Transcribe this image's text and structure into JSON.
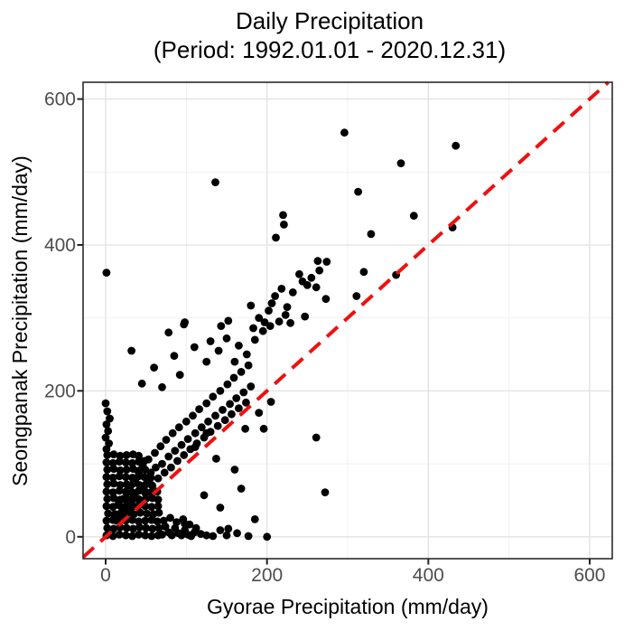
{
  "chart_data": {
    "type": "scatter",
    "title": "Daily Precipitation",
    "subtitle": "(Period: 1992.01.01 - 2020.12.31)",
    "xlabel": "Gyorae Precipitation (mm/day)",
    "ylabel": "Seongpanak Precipitation (mm/day)",
    "xlim": [
      -28,
      628
    ],
    "ylim": [
      -30,
      623
    ],
    "x_ticks": [
      0,
      200,
      400,
      600
    ],
    "y_ticks": [
      0,
      200,
      400,
      600
    ],
    "x_minor_ticks": [
      100,
      300,
      500
    ],
    "y_minor_ticks": [
      100,
      300,
      500
    ],
    "grid": true,
    "legend_position": "none",
    "panel_background": "#ffffff",
    "panel_border_color": "#2b2b2b",
    "major_grid_color": "#e2e2e2",
    "minor_grid_color": "#efefef",
    "tick_color": "#222222",
    "point_color": "#000000",
    "point_radius": 4.4,
    "identity_line": {
      "equation": "y = x",
      "style": "dashed",
      "color": "#ee1111",
      "stroke_width": 4,
      "dash": [
        16,
        10
      ]
    },
    "points": [
      [
        1,
        2
      ],
      [
        9,
        1
      ],
      [
        17,
        3
      ],
      [
        25,
        2
      ],
      [
        33,
        1
      ],
      [
        41,
        3
      ],
      [
        49,
        2
      ],
      [
        57,
        1
      ],
      [
        65,
        2
      ],
      [
        2,
        12
      ],
      [
        10,
        11
      ],
      [
        18,
        13
      ],
      [
        26,
        12
      ],
      [
        34,
        11
      ],
      [
        42,
        13
      ],
      [
        50,
        12
      ],
      [
        58,
        11
      ],
      [
        66,
        12
      ],
      [
        1,
        22
      ],
      [
        9,
        23
      ],
      [
        17,
        21
      ],
      [
        25,
        22
      ],
      [
        33,
        23
      ],
      [
        41,
        21
      ],
      [
        49,
        22
      ],
      [
        57,
        23
      ],
      [
        64,
        21
      ],
      [
        3,
        32
      ],
      [
        11,
        31
      ],
      [
        19,
        33
      ],
      [
        27,
        32
      ],
      [
        35,
        31
      ],
      [
        43,
        33
      ],
      [
        51,
        32
      ],
      [
        59,
        31
      ],
      [
        66,
        33
      ],
      [
        1,
        42
      ],
      [
        9,
        41
      ],
      [
        17,
        43
      ],
      [
        25,
        42
      ],
      [
        33,
        41
      ],
      [
        41,
        43
      ],
      [
        49,
        42
      ],
      [
        57,
        41
      ],
      [
        65,
        42
      ],
      [
        2,
        52
      ],
      [
        10,
        53
      ],
      [
        18,
        51
      ],
      [
        26,
        52
      ],
      [
        34,
        53
      ],
      [
        42,
        51
      ],
      [
        50,
        52
      ],
      [
        58,
        53
      ],
      [
        65,
        51
      ],
      [
        1,
        62
      ],
      [
        9,
        61
      ],
      [
        17,
        63
      ],
      [
        25,
        62
      ],
      [
        33,
        61
      ],
      [
        41,
        63
      ],
      [
        49,
        62
      ],
      [
        56,
        61
      ],
      [
        64,
        62
      ],
      [
        2,
        72
      ],
      [
        10,
        73
      ],
      [
        18,
        71
      ],
      [
        26,
        72
      ],
      [
        34,
        73
      ],
      [
        42,
        71
      ],
      [
        50,
        72
      ],
      [
        57,
        71
      ],
      [
        1,
        82
      ],
      [
        9,
        81
      ],
      [
        17,
        83
      ],
      [
        25,
        82
      ],
      [
        33,
        81
      ],
      [
        41,
        83
      ],
      [
        48,
        82
      ],
      [
        56,
        81
      ],
      [
        2,
        92
      ],
      [
        10,
        93
      ],
      [
        18,
        91
      ],
      [
        26,
        92
      ],
      [
        34,
        93
      ],
      [
        42,
        91
      ],
      [
        49,
        92
      ],
      [
        1,
        102
      ],
      [
        9,
        101
      ],
      [
        17,
        103
      ],
      [
        25,
        102
      ],
      [
        33,
        101
      ],
      [
        41,
        103
      ],
      [
        48,
        104
      ],
      [
        2,
        112
      ],
      [
        10,
        113
      ],
      [
        18,
        111
      ],
      [
        26,
        112
      ],
      [
        34,
        113
      ],
      [
        41,
        111
      ],
      [
        70,
        3
      ],
      [
        74,
        14
      ],
      [
        78,
        6
      ],
      [
        82,
        2
      ],
      [
        86,
        12
      ],
      [
        90,
        5
      ],
      [
        94,
        2
      ],
      [
        98,
        9
      ],
      [
        102,
        3
      ],
      [
        106,
        1
      ],
      [
        110,
        6
      ],
      [
        72,
        22
      ],
      [
        80,
        26
      ],
      [
        88,
        20
      ],
      [
        96,
        24
      ],
      [
        104,
        17
      ],
      [
        112,
        12
      ],
      [
        118,
        4
      ],
      [
        125,
        2
      ],
      [
        133,
        1
      ],
      [
        142,
        9
      ],
      [
        150,
        2
      ],
      [
        163,
        5
      ],
      [
        177,
        1
      ],
      [
        200,
        0
      ],
      [
        1,
        120
      ],
      [
        4,
        128
      ],
      [
        0,
        136
      ],
      [
        3,
        145
      ],
      [
        1,
        154
      ],
      [
        5,
        162
      ],
      [
        2,
        172
      ],
      [
        0,
        183
      ],
      [
        12,
        31
      ],
      [
        14,
        22
      ],
      [
        16,
        45
      ],
      [
        19,
        27
      ],
      [
        22,
        52
      ],
      [
        23,
        38
      ],
      [
        26,
        60
      ],
      [
        28,
        35
      ],
      [
        31,
        70
      ],
      [
        32,
        47
      ],
      [
        35,
        58
      ],
      [
        37,
        79
      ],
      [
        40,
        52
      ],
      [
        41,
        88
      ],
      [
        44,
        66
      ],
      [
        46,
        98
      ],
      [
        49,
        60
      ],
      [
        52,
        75
      ],
      [
        53,
        106
      ],
      [
        56,
        88
      ],
      [
        58,
        70
      ],
      [
        61,
        115
      ],
      [
        62,
        95
      ],
      [
        65,
        80
      ],
      [
        68,
        124
      ],
      [
        70,
        100
      ],
      [
        73,
        88
      ],
      [
        75,
        133
      ],
      [
        78,
        110
      ],
      [
        81,
        95
      ],
      [
        83,
        142
      ],
      [
        86,
        118
      ],
      [
        89,
        104
      ],
      [
        91,
        150
      ],
      [
        94,
        126
      ],
      [
        97,
        112
      ],
      [
        100,
        158
      ],
      [
        102,
        134
      ],
      [
        105,
        120
      ],
      [
        108,
        166
      ],
      [
        111,
        142
      ],
      [
        113,
        128
      ],
      [
        116,
        175
      ],
      [
        119,
        150
      ],
      [
        122,
        136
      ],
      [
        125,
        183
      ],
      [
        127,
        158
      ],
      [
        130,
        144
      ],
      [
        133,
        192
      ],
      [
        136,
        166
      ],
      [
        139,
        152
      ],
      [
        142,
        200
      ],
      [
        145,
        174
      ],
      [
        148,
        160
      ],
      [
        151,
        209
      ],
      [
        154,
        182
      ],
      [
        156,
        168
      ],
      [
        159,
        218
      ],
      [
        162,
        190
      ],
      [
        165,
        176
      ],
      [
        168,
        226
      ],
      [
        171,
        198
      ],
      [
        174,
        184
      ],
      [
        177,
        235
      ],
      [
        180,
        206
      ],
      [
        45,
        210
      ],
      [
        60,
        232
      ],
      [
        70,
        205
      ],
      [
        85,
        248
      ],
      [
        92,
        222
      ],
      [
        110,
        260
      ],
      [
        125,
        240
      ],
      [
        130,
        268
      ],
      [
        140,
        255
      ],
      [
        150,
        272
      ],
      [
        160,
        240
      ],
      [
        165,
        262
      ],
      [
        175,
        250
      ],
      [
        185,
        270
      ],
      [
        190,
        300
      ],
      [
        195,
        282
      ],
      [
        210,
        330
      ],
      [
        215,
        295
      ],
      [
        218,
        340
      ],
      [
        225,
        315
      ],
      [
        232,
        335
      ],
      [
        240,
        360
      ],
      [
        250,
        345
      ],
      [
        32,
        255
      ],
      [
        78,
        280
      ],
      [
        97,
        291
      ],
      [
        143,
        289
      ],
      [
        183,
        286
      ],
      [
        204,
        289
      ],
      [
        98,
        294
      ],
      [
        152,
        296
      ],
      [
        197,
        294
      ],
      [
        229,
        293
      ],
      [
        223,
        304
      ],
      [
        202,
        310
      ],
      [
        206,
        320
      ],
      [
        180,
        317
      ],
      [
        244,
        350
      ],
      [
        263,
        378
      ],
      [
        274,
        377
      ],
      [
        265,
        365
      ],
      [
        261,
        342
      ],
      [
        273,
        326
      ],
      [
        320,
        363
      ],
      [
        360,
        359
      ],
      [
        311,
        330
      ],
      [
        329,
        415
      ],
      [
        313,
        473
      ],
      [
        382,
        440
      ],
      [
        430,
        424
      ],
      [
        366,
        512
      ],
      [
        434,
        536
      ],
      [
        296,
        554
      ],
      [
        211,
        410
      ],
      [
        220,
        441
      ],
      [
        221,
        428
      ],
      [
        136,
        486
      ],
      [
        1,
        362
      ],
      [
        247,
        302
      ],
      [
        255,
        355
      ],
      [
        261,
        136
      ],
      [
        272,
        61
      ],
      [
        122,
        57
      ],
      [
        111,
        123
      ],
      [
        125,
        142
      ],
      [
        137,
        107
      ],
      [
        168,
        66
      ],
      [
        185,
        24
      ],
      [
        152,
        11
      ],
      [
        98,
        18
      ],
      [
        142,
        40
      ],
      [
        160,
        92
      ],
      [
        173,
        148
      ],
      [
        190,
        170
      ],
      [
        205,
        185
      ],
      [
        196,
        148
      ]
    ]
  }
}
